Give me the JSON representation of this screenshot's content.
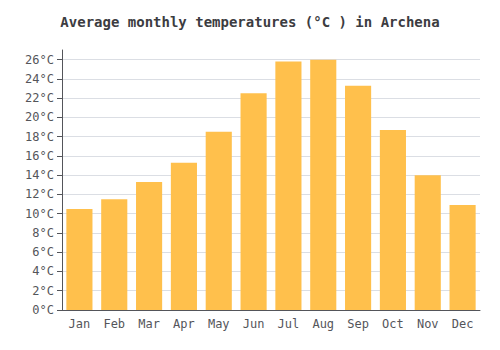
{
  "chart_data": {
    "type": "bar",
    "title": "Average monthly temperatures (°C ) in Archena",
    "categories": [
      "Jan",
      "Feb",
      "Mar",
      "Apr",
      "May",
      "Jun",
      "Jul",
      "Aug",
      "Sep",
      "Oct",
      "Nov",
      "Dec"
    ],
    "values": [
      10.5,
      11.5,
      13.3,
      15.3,
      18.5,
      22.5,
      25.8,
      26.0,
      23.3,
      18.7,
      14.0,
      10.9
    ],
    "color": "#FFC04C",
    "ylim": [
      0,
      27
    ],
    "yticks": [
      {
        "value": 0,
        "label": "0°C"
      },
      {
        "value": 2,
        "label": "2°C"
      },
      {
        "value": 4,
        "label": "4°C"
      },
      {
        "value": 6,
        "label": "6°C"
      },
      {
        "value": 8,
        "label": "8°C"
      },
      {
        "value": 10,
        "label": "10°C"
      },
      {
        "value": 12,
        "label": "12°C"
      },
      {
        "value": 14,
        "label": "14°C"
      },
      {
        "value": 16,
        "label": "16°C"
      },
      {
        "value": 18,
        "label": "18°C"
      },
      {
        "value": 20,
        "label": "20°C"
      },
      {
        "value": 22,
        "label": "22°C"
      },
      {
        "value": 24,
        "label": "24°C"
      },
      {
        "value": 26,
        "label": "26°C"
      }
    ],
    "grid": true
  }
}
